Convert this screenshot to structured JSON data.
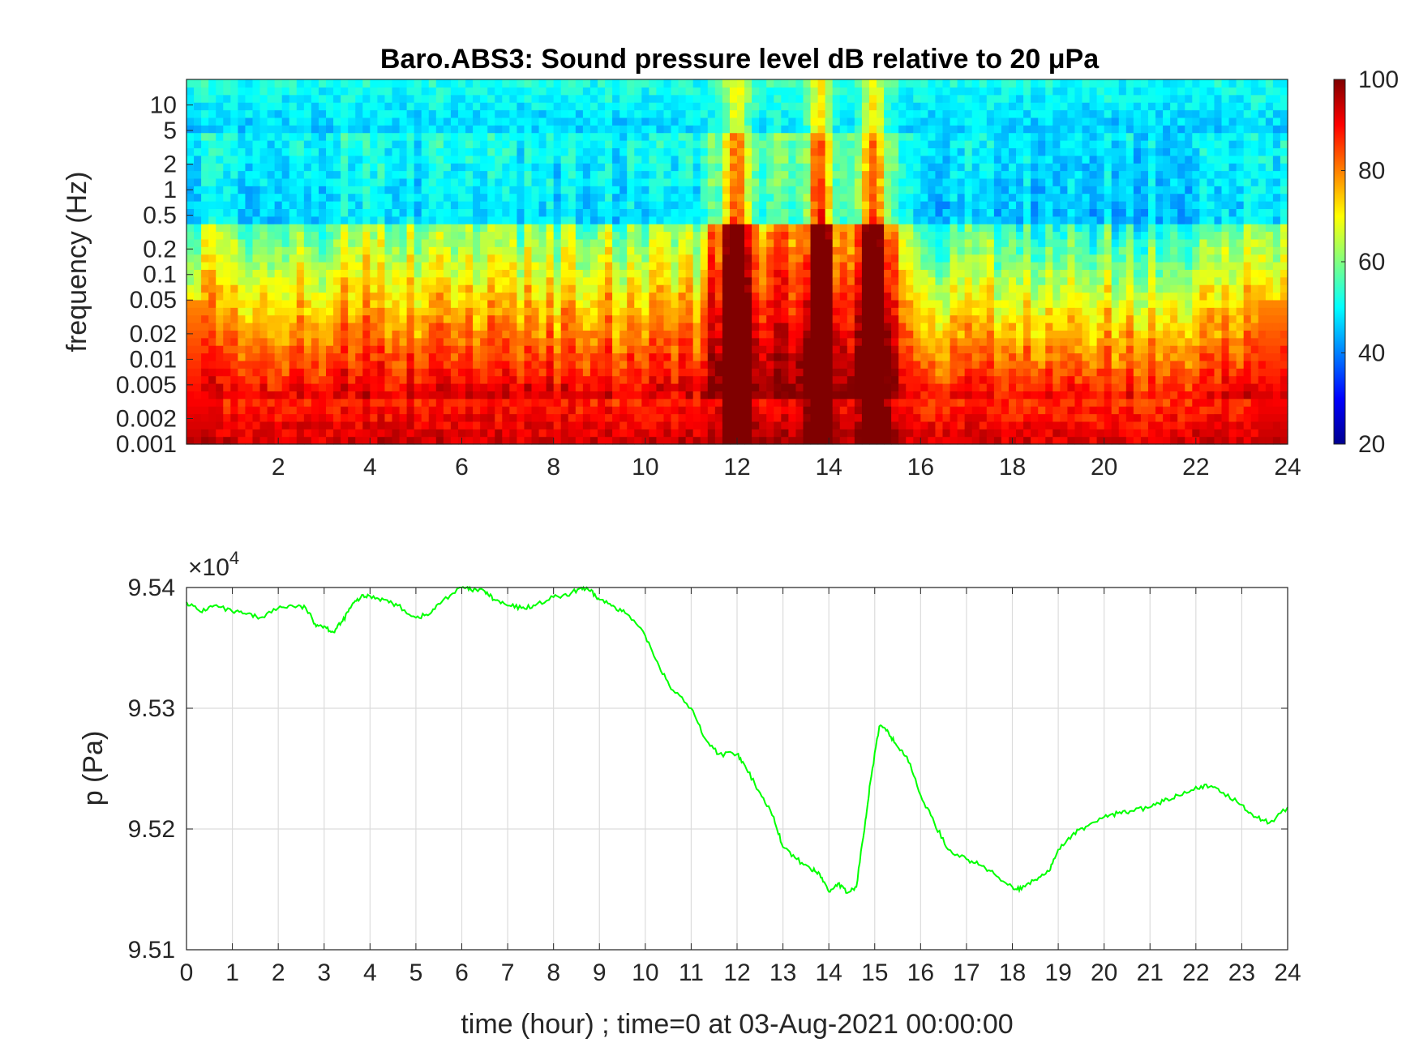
{
  "chart_data": [
    {
      "type": "heatmap",
      "title": "Baro.ABS3: Sound pressure level dB relative to 20 μPa",
      "ylabel": "frequency (Hz)",
      "xlabel": "",
      "xlim": [
        0,
        24
      ],
      "ylim": [
        0.001,
        20
      ],
      "yscale": "log",
      "x_ticks": [
        "2",
        "4",
        "6",
        "8",
        "10",
        "12",
        "14",
        "16",
        "18",
        "20",
        "22",
        "24"
      ],
      "y_ticks": [
        "10",
        "5",
        "2",
        "1",
        "0.5",
        "0.2",
        "0.1",
        "0.05",
        "0.02",
        "0.01",
        "0.005",
        "0.002",
        "0.001"
      ],
      "y_tick_values": [
        10,
        5,
        2,
        1,
        0.5,
        0.2,
        0.1,
        0.05,
        0.02,
        0.01,
        0.005,
        0.002,
        0.001
      ],
      "colormap": "jet",
      "colorbar": {
        "min": 20,
        "max": 100,
        "ticks": [
          "100",
          "80",
          "60",
          "40",
          "20"
        ],
        "tick_values": [
          100,
          80,
          60,
          40,
          20
        ]
      },
      "broadband_events_hour": [
        12.0,
        13.8,
        15.0
      ],
      "grid": false
    },
    {
      "type": "line",
      "title": "",
      "xlabel": "time (hour) ; time=0 at 03-Aug-2021 00:00:00",
      "ylabel": "p (Pa)",
      "y_exponent_label": "×10",
      "y_exponent_power": "4",
      "xlim": [
        0,
        24
      ],
      "ylim": [
        95100,
        95400
      ],
      "x_ticks": [
        "0",
        "1",
        "2",
        "3",
        "4",
        "5",
        "6",
        "7",
        "8",
        "9",
        "10",
        "11",
        "12",
        "13",
        "14",
        "15",
        "16",
        "17",
        "18",
        "19",
        "20",
        "21",
        "22",
        "23",
        "24"
      ],
      "y_ticks": [
        "9.54",
        "9.53",
        "9.52",
        "9.51"
      ],
      "y_tick_values": [
        95400,
        95300,
        95200,
        95100
      ],
      "grid": true,
      "series": [
        {
          "color": "#00ff00",
          "x": [
            0,
            0.3,
            0.6,
            1,
            1.3,
            1.6,
            2,
            2.3,
            2.6,
            2.8,
            3,
            3.2,
            3.4,
            3.6,
            3.8,
            4,
            4.3,
            4.6,
            5,
            5.3,
            5.6,
            6,
            6.2,
            6.5,
            6.7,
            7,
            7.3,
            7.6,
            8,
            8.3,
            8.6,
            8.8,
            9,
            9.3,
            9.6,
            10,
            10.3,
            10.6,
            11,
            11.3,
            11.6,
            12,
            12.2,
            12.5,
            12.8,
            13,
            13.3,
            13.6,
            13.8,
            14,
            14.2,
            14.4,
            14.6,
            14.8,
            14.9,
            15.1,
            15.3,
            15.5,
            15.7,
            16,
            16.3,
            16.6,
            17,
            17.3,
            17.6,
            18,
            18.2,
            18.5,
            18.8,
            19,
            19.3,
            19.6,
            20,
            20.3,
            20.6,
            21,
            21.3,
            21.6,
            22,
            22.3,
            22.6,
            23,
            23.3,
            23.6,
            24
          ],
          "y": [
            95388,
            95380,
            95385,
            95380,
            95378,
            95375,
            95383,
            95385,
            95383,
            95370,
            95368,
            95363,
            95372,
            95385,
            95392,
            95393,
            95390,
            95385,
            95375,
            95378,
            95390,
            95400,
            95398,
            95397,
            95390,
            95385,
            95383,
            95385,
            95392,
            95393,
            95400,
            95397,
            95390,
            95385,
            95378,
            95360,
            95335,
            95315,
            95300,
            95275,
            95262,
            95262,
            95250,
            95230,
            95210,
            95185,
            95175,
            95167,
            95163,
            95148,
            95155,
            95147,
            95152,
            95208,
            95238,
            95285,
            95280,
            95268,
            95260,
            95228,
            95205,
            95183,
            95175,
            95170,
            95163,
            95152,
            95150,
            95158,
            95165,
            95183,
            95195,
            95202,
            95210,
            95213,
            95215,
            95218,
            95223,
            95228,
            95235,
            95235,
            95230,
            95220,
            95210,
            95205,
            95218
          ]
        }
      ]
    }
  ]
}
